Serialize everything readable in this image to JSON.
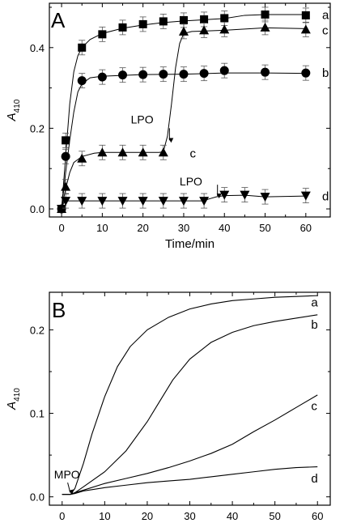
{
  "chart_data": [
    {
      "panel": "A",
      "type": "scatter",
      "xlabel": "Time/min",
      "ylabel": "A",
      "ylabel_sub": "410",
      "xlim": [
        -3,
        66
      ],
      "ylim": [
        -0.02,
        0.51
      ],
      "xticks": [
        0,
        10,
        20,
        30,
        40,
        50,
        60
      ],
      "yticks": [
        0.0,
        0.2,
        0.4
      ],
      "ytick_labels": [
        "0.0",
        "0.2",
        "0.4"
      ],
      "grid": false,
      "series": [
        {
          "name": "a",
          "marker": "square",
          "x": [
            0,
            1,
            5,
            10,
            15,
            20,
            25,
            30,
            35,
            40,
            50,
            60
          ],
          "y": [
            0.0,
            0.17,
            0.4,
            0.433,
            0.45,
            0.458,
            0.465,
            0.468,
            0.47,
            0.473,
            0.482,
            0.48
          ],
          "fit": [
            [
              0,
              0
            ],
            [
              1,
              0.13
            ],
            [
              2,
              0.26
            ],
            [
              3,
              0.34
            ],
            [
              4,
              0.38
            ],
            [
              5,
              0.4
            ],
            [
              7,
              0.42
            ],
            [
              10,
              0.435
            ],
            [
              15,
              0.448
            ],
            [
              20,
              0.456
            ],
            [
              25,
              0.462
            ],
            [
              30,
              0.466
            ],
            [
              40,
              0.472
            ],
            [
              45,
              0.48
            ],
            [
              50,
              0.482
            ],
            [
              60,
              0.482
            ]
          ]
        },
        {
          "name": "b",
          "marker": "circle",
          "x": [
            0,
            1,
            5,
            10,
            15,
            20,
            25,
            30,
            35,
            40,
            50,
            60
          ],
          "y": [
            0.0,
            0.13,
            0.318,
            0.327,
            0.332,
            0.333,
            0.334,
            0.334,
            0.336,
            0.343,
            0.339,
            0.337
          ],
          "fit": [
            [
              0,
              0
            ],
            [
              1,
              0.09
            ],
            [
              2,
              0.17
            ],
            [
              3,
              0.24
            ],
            [
              4,
              0.29
            ],
            [
              5,
              0.31
            ],
            [
              7,
              0.325
            ],
            [
              10,
              0.329
            ],
            [
              20,
              0.333
            ],
            [
              30,
              0.334
            ],
            [
              40,
              0.337
            ],
            [
              50,
              0.337
            ],
            [
              60,
              0.336
            ]
          ]
        },
        {
          "name": "c",
          "marker": "triangle-up",
          "x": [
            0,
            1,
            5,
            10,
            15,
            20,
            25,
            30,
            35,
            40,
            50,
            60
          ],
          "y": [
            0.0,
            0.055,
            0.125,
            0.14,
            0.14,
            0.14,
            0.14,
            0.44,
            0.443,
            0.445,
            0.45,
            0.445
          ],
          "fit": [
            [
              0,
              0
            ],
            [
              1,
              0.05
            ],
            [
              2,
              0.09
            ],
            [
              3,
              0.115
            ],
            [
              5,
              0.13
            ],
            [
              8,
              0.138
            ],
            [
              10,
              0.14
            ],
            [
              20,
              0.14
            ],
            [
              24,
              0.14
            ],
            [
              25,
              0.142
            ],
            [
              26,
              0.18
            ],
            [
              27,
              0.26
            ],
            [
              28,
              0.35
            ],
            [
              29,
              0.41
            ],
            [
              30,
              0.435
            ],
            [
              32,
              0.44
            ],
            [
              40,
              0.443
            ],
            [
              50,
              0.449
            ],
            [
              60,
              0.447
            ]
          ]
        },
        {
          "name": "d",
          "marker": "triangle-down",
          "x": [
            0,
            1,
            5,
            10,
            15,
            20,
            25,
            30,
            35,
            40,
            45,
            50,
            60
          ],
          "y": [
            0.0,
            0.02,
            0.02,
            0.02,
            0.02,
            0.02,
            0.02,
            0.02,
            0.02,
            0.035,
            0.035,
            0.03,
            0.033
          ],
          "fit": [
            [
              0,
              0
            ],
            [
              0.5,
              0.015
            ],
            [
              1,
              0.02
            ],
            [
              10,
              0.02
            ],
            [
              20,
              0.02
            ],
            [
              35,
              0.02
            ],
            [
              36,
              0.024
            ],
            [
              38,
              0.03
            ],
            [
              40,
              0.033
            ],
            [
              45,
              0.034
            ],
            [
              50,
              0.03
            ],
            [
              60,
              0.032
            ]
          ]
        }
      ],
      "curve_labels": [
        {
          "text": "a",
          "x": 64,
          "y": 0.481
        },
        {
          "text": "c",
          "x": 64,
          "y": 0.443
        },
        {
          "text": "b",
          "x": 64,
          "y": 0.337
        },
        {
          "text": "c",
          "x": 31.5,
          "y": 0.138
        },
        {
          "text": "d",
          "x": 64,
          "y": 0.031
        }
      ],
      "annotations": [
        {
          "text": "LPO",
          "text_x": 17,
          "text_y": 0.212,
          "arrow_from": [
            26.5,
            0.2
          ],
          "arrow_to": [
            26.5,
            0.17
          ]
        },
        {
          "text": "LPO",
          "text_x": 29,
          "text_y": 0.058,
          "arrow_from": [
            38.3,
            0.06
          ],
          "arrow_to": [
            38.3,
            0.032
          ]
        }
      ]
    },
    {
      "panel": "B",
      "type": "line",
      "xlabel": "Time/min",
      "ylabel": "A",
      "ylabel_sub": "410",
      "xlim": [
        -3,
        63
      ],
      "ylim": [
        -0.01,
        0.245
      ],
      "xticks": [
        0,
        10,
        20,
        30,
        40,
        50,
        60
      ],
      "yticks": [
        0.0,
        0.1,
        0.2
      ],
      "ytick_labels": [
        "0.0",
        "0.1",
        "0.2"
      ],
      "grid": false,
      "series": [
        {
          "name": "a",
          "x": [
            0,
            2,
            3,
            5,
            7,
            10,
            13,
            16,
            20,
            25,
            30,
            35,
            40,
            45,
            50,
            55,
            60
          ],
          "y": [
            0.003,
            0.003,
            0.01,
            0.04,
            0.075,
            0.12,
            0.156,
            0.18,
            0.2,
            0.215,
            0.225,
            0.231,
            0.235,
            0.237,
            0.239,
            0.24,
            0.241
          ]
        },
        {
          "name": "b",
          "x": [
            0,
            2,
            3,
            5,
            10,
            15,
            20,
            23,
            26,
            30,
            35,
            40,
            45,
            50,
            55,
            60
          ],
          "y": [
            0.003,
            0.003,
            0.005,
            0.012,
            0.03,
            0.055,
            0.09,
            0.115,
            0.14,
            0.165,
            0.185,
            0.197,
            0.205,
            0.21,
            0.214,
            0.218
          ]
        },
        {
          "name": "c",
          "x": [
            0,
            2,
            3,
            5,
            10,
            15,
            20,
            25,
            30,
            35,
            40,
            45,
            50,
            55,
            60
          ],
          "y": [
            0.003,
            0.003,
            0.005,
            0.008,
            0.016,
            0.022,
            0.028,
            0.035,
            0.043,
            0.052,
            0.063,
            0.078,
            0.092,
            0.107,
            0.122
          ]
        },
        {
          "name": "d",
          "x": [
            0,
            2,
            3,
            5,
            10,
            15,
            20,
            25,
            30,
            35,
            40,
            45,
            50,
            55,
            60
          ],
          "y": [
            0.003,
            0.003,
            0.004,
            0.007,
            0.011,
            0.014,
            0.017,
            0.019,
            0.021,
            0.024,
            0.027,
            0.03,
            0.033,
            0.035,
            0.036
          ]
        }
      ],
      "curve_labels": [
        {
          "text": "a",
          "x": 58.5,
          "y": 0.233
        },
        {
          "text": "b",
          "x": 58.5,
          "y": 0.206
        },
        {
          "text": "c",
          "x": 58.5,
          "y": 0.109
        },
        {
          "text": "d",
          "x": 58.5,
          "y": 0.022
        }
      ],
      "annotations": [
        {
          "text": "MPO",
          "text_x": -1.9,
          "text_y": 0.022,
          "arrow_from": [
            1.3,
            0.017
          ],
          "arrow_to": [
            1.9,
            0.005
          ]
        }
      ]
    }
  ]
}
